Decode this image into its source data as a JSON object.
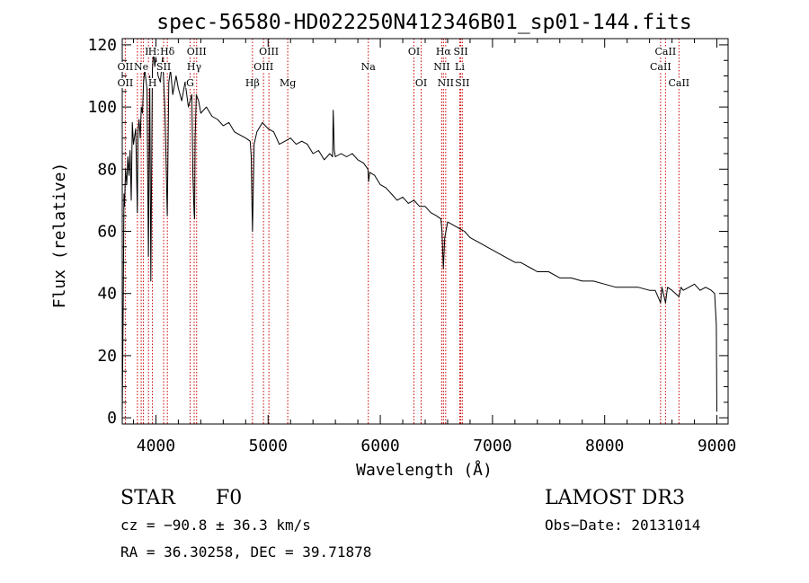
{
  "chart_data": {
    "type": "line",
    "title": "spec-56580-HD022250N412346B01_sp01-144.fits",
    "xlabel": "Wavelength (Å)",
    "ylabel": "Flux (relative)",
    "xlim": [
      3700,
      9100
    ],
    "ylim": [
      -2,
      122
    ],
    "x_ticks": [
      4000,
      5000,
      6000,
      7000,
      8000,
      9000
    ],
    "y_ticks": [
      0,
      20,
      40,
      60,
      80,
      100,
      120
    ],
    "x_tick_labels": [
      "4000",
      "5000",
      "6000",
      "7000",
      "8000",
      "9000"
    ],
    "y_tick_labels": [
      "0",
      "20",
      "40",
      "60",
      "80",
      "100",
      "120"
    ],
    "series": [
      {
        "name": "spectrum",
        "x": [
          3700,
          3710,
          3715,
          3720,
          3730,
          3740,
          3750,
          3760,
          3770,
          3780,
          3790,
          3800,
          3820,
          3835,
          3840,
          3850,
          3860,
          3870,
          3880,
          3890,
          3900,
          3920,
          3933,
          3945,
          3955,
          3968,
          3980,
          3990,
          4000,
          4020,
          4040,
          4060,
          4080,
          4101,
          4115,
          4130,
          4150,
          4180,
          4200,
          4230,
          4260,
          4290,
          4320,
          4330,
          4340,
          4345,
          4350,
          4360,
          4380,
          4400,
          4450,
          4500,
          4550,
          4600,
          4650,
          4700,
          4750,
          4800,
          4840,
          4850,
          4855,
          4861,
          4868,
          4875,
          4900,
          4950,
          5000,
          5050,
          5100,
          5150,
          5200,
          5250,
          5300,
          5350,
          5400,
          5450,
          5500,
          5550,
          5575,
          5580,
          5590,
          5600,
          5650,
          5700,
          5750,
          5800,
          5850,
          5890,
          5896,
          5905,
          5950,
          6000,
          6050,
          6100,
          6150,
          6200,
          6250,
          6300,
          6350,
          6400,
          6450,
          6500,
          6540,
          6550,
          6562,
          6575,
          6600,
          6650,
          6700,
          6750,
          6800,
          6850,
          6900,
          6950,
          7000,
          7100,
          7200,
          7250,
          7300,
          7350,
          7400,
          7500,
          7600,
          7700,
          7800,
          7900,
          8000,
          8100,
          8200,
          8300,
          8400,
          8450,
          8498,
          8510,
          8542,
          8560,
          8600,
          8662,
          8680,
          8700,
          8750,
          8800,
          8850,
          8900,
          8950,
          8980,
          8995,
          9000
        ],
        "values": [
          0,
          40,
          72,
          68,
          80,
          75,
          84,
          78,
          86,
          70,
          95,
          88,
          93,
          66,
          92,
          96,
          90,
          100,
          98,
          108,
          112,
          106,
          52,
          110,
          44,
          112,
          118,
          113,
          116,
          110,
          108,
          116,
          100,
          65,
          108,
          112,
          104,
          110,
          106,
          102,
          108,
          100,
          104,
          78,
          66,
          64,
          90,
          104,
          102,
          98,
          100,
          97,
          96,
          94,
          95,
          92,
          91,
          90,
          89,
          84,
          70,
          60,
          74,
          88,
          92,
          95,
          93,
          92,
          88,
          89,
          90,
          88,
          89,
          88,
          85,
          86,
          83,
          85,
          84,
          99,
          86,
          84,
          85,
          84,
          85,
          83,
          82,
          80,
          76,
          79,
          78,
          75,
          74,
          72,
          70,
          71,
          69,
          70,
          68,
          68,
          66,
          65,
          64,
          60,
          48,
          58,
          63,
          62,
          61,
          60,
          58,
          57,
          56,
          55,
          54,
          52,
          50,
          50,
          49,
          48,
          47,
          47,
          45,
          45,
          44,
          44,
          43,
          42,
          42,
          42,
          41,
          41,
          37,
          42,
          37,
          42,
          41,
          39,
          42,
          41,
          42,
          43,
          41,
          42,
          41,
          40,
          30,
          2
        ]
      }
    ],
    "line_markers": [
      {
        "label": "Hε",
        "wavelength": 3970,
        "row": 0
      },
      {
        "label": "K",
        "wavelength": 3934,
        "row": 0
      },
      {
        "label": "H",
        "wavelength": 3969,
        "row": 0
      },
      {
        "label": "Hδ",
        "wavelength": 4102,
        "row": 0
      },
      {
        "label": "OIII",
        "wavelength": 4363,
        "row": 0
      },
      {
        "label": "OII",
        "wavelength": 3727,
        "row": 1
      },
      {
        "label": "Ne",
        "wavelength": 3869,
        "row": 1
      },
      {
        "label": "SII",
        "wavelength": 4069,
        "row": 1
      },
      {
        "label": "Hγ",
        "wavelength": 4341,
        "row": 1
      },
      {
        "label": "OII",
        "wavelength": 3727,
        "row": 2
      },
      {
        "label": "H",
        "wavelength": 3970,
        "row": 2
      },
      {
        "label": "G",
        "wavelength": 4305,
        "row": 2
      },
      {
        "label": "OIII",
        "wavelength": 5007,
        "row": 0
      },
      {
        "label": "OIII",
        "wavelength": 4959,
        "row": 1
      },
      {
        "label": "Hβ",
        "wavelength": 4861,
        "row": 2
      },
      {
        "label": "Mg",
        "wavelength": 5175,
        "row": 2
      },
      {
        "label": "Na",
        "wavelength": 5893,
        "row": 1
      },
      {
        "label": "OI",
        "wavelength": 6300,
        "row": 0
      },
      {
        "label": "OI",
        "wavelength": 6364,
        "row": 2
      },
      {
        "label": "Hα",
        "wavelength": 6563,
        "row": 0
      },
      {
        "label": "SII",
        "wavelength": 6717,
        "row": 0
      },
      {
        "label": "NII",
        "wavelength": 6548,
        "row": 1
      },
      {
        "label": "Li",
        "wavelength": 6708,
        "row": 1
      },
      {
        "label": "NII",
        "wavelength": 6583,
        "row": 2
      },
      {
        "label": "SII",
        "wavelength": 6731,
        "row": 2
      },
      {
        "label": "CaII",
        "wavelength": 8542,
        "row": 0
      },
      {
        "label": "CaII",
        "wavelength": 8498,
        "row": 1
      },
      {
        "label": "CaII",
        "wavelength": 8662,
        "row": 2
      }
    ],
    "marker_lines": [
      3727,
      3835,
      3869,
      3889,
      3934,
      3969,
      4069,
      4102,
      4305,
      4341,
      4363,
      4861,
      4959,
      5007,
      5175,
      5893,
      6300,
      6364,
      6548,
      6563,
      6583,
      6708,
      6717,
      6731,
      8498,
      8542,
      8662
    ],
    "colors": {
      "spectrum": "#000000",
      "marker": "#cc0000",
      "axes": "#000000",
      "background": "#ffffff"
    }
  },
  "info": {
    "object_class": "STAR",
    "subclass": "F0",
    "survey": "LAMOST DR3",
    "cz": "cz = −90.8 ± 36.3 km/s",
    "obs_date": "Obs−Date: 20131014",
    "coords": "RA =  36.30258, DEC =  39.71878"
  }
}
